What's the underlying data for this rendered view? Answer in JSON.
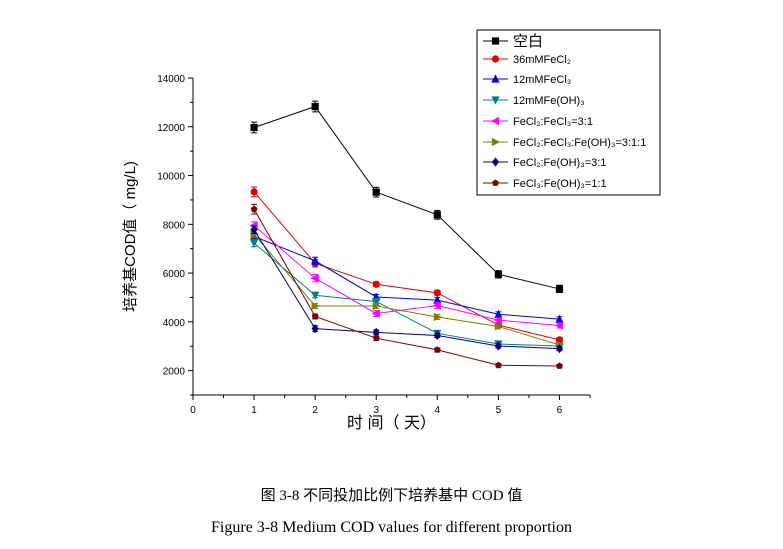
{
  "chart_data": {
    "type": "line",
    "title": "",
    "xlabel": "时 间（ 天）",
    "ylabel": "培养基COD值（ mg/L)",
    "xlim": [
      0,
      6.5
    ],
    "ylim": [
      1000,
      14000
    ],
    "xticks": [
      0,
      1,
      2,
      3,
      4,
      5,
      6
    ],
    "yticks": [
      2000,
      4000,
      6000,
      8000,
      10000,
      12000,
      14000
    ],
    "grid": false,
    "legend_placement": "top-right",
    "x": [
      1,
      2,
      3,
      4,
      5,
      6
    ],
    "series": [
      {
        "name": "空白",
        "color": "#000000",
        "marker": "square",
        "values": [
          11970,
          12830,
          9320,
          8390,
          5950,
          5350
        ],
        "error": [
          220,
          220,
          200,
          180,
          150,
          150
        ]
      },
      {
        "name": "36mMFeCl₂",
        "color": "#e00000",
        "marker": "circle",
        "values": [
          9330,
          6400,
          5540,
          5190,
          3870,
          3260
        ],
        "error": [
          200,
          150,
          100,
          100,
          100,
          100
        ]
      },
      {
        "name": "12mMFeCl₃",
        "color": "#0000e0",
        "marker": "triangle-up",
        "values": [
          7500,
          6500,
          5020,
          4890,
          4310,
          4110
        ],
        "error": [
          150,
          150,
          100,
          100,
          100,
          100
        ]
      },
      {
        "name": "12mMFe(OH)₃",
        "color": "#008080",
        "marker": "triangle-down",
        "values": [
          7230,
          5090,
          4830,
          3530,
          3090,
          3010
        ],
        "error": [
          150,
          100,
          100,
          80,
          80,
          80
        ]
      },
      {
        "name": "FeCl₂:FeCl₃=3:1",
        "color": "#ff00ff",
        "marker": "triangle-left",
        "values": [
          7950,
          5790,
          4340,
          4670,
          4070,
          3850
        ],
        "error": [
          150,
          150,
          120,
          120,
          100,
          100
        ]
      },
      {
        "name": "FeCl₂:FeCl₃:Fe(OH)₃=3:1:1",
        "color": "#808000",
        "marker": "triangle-right",
        "values": [
          7600,
          4650,
          4650,
          4200,
          3810,
          3050
        ],
        "error": [
          150,
          100,
          100,
          100,
          100,
          80
        ]
      },
      {
        "name": "FeCl₂:Fe(OH)₃=3:1",
        "color": "#000080",
        "marker": "diamond",
        "values": [
          7780,
          3720,
          3570,
          3440,
          3010,
          2900
        ],
        "error": [
          150,
          120,
          100,
          80,
          80,
          80
        ]
      },
      {
        "name": "FeCl₃:Fe(OH)₃=1:1",
        "color": "#800000",
        "marker": "pentagon",
        "values": [
          8620,
          4220,
          3330,
          2850,
          2220,
          2190
        ],
        "error": [
          200,
          100,
          80,
          80,
          60,
          60
        ]
      }
    ]
  },
  "caption": {
    "chinese": "图 3-8 不同投加比例下培养基中 COD 值",
    "english": "Figure 3-8 Medium COD values for different proportion"
  }
}
